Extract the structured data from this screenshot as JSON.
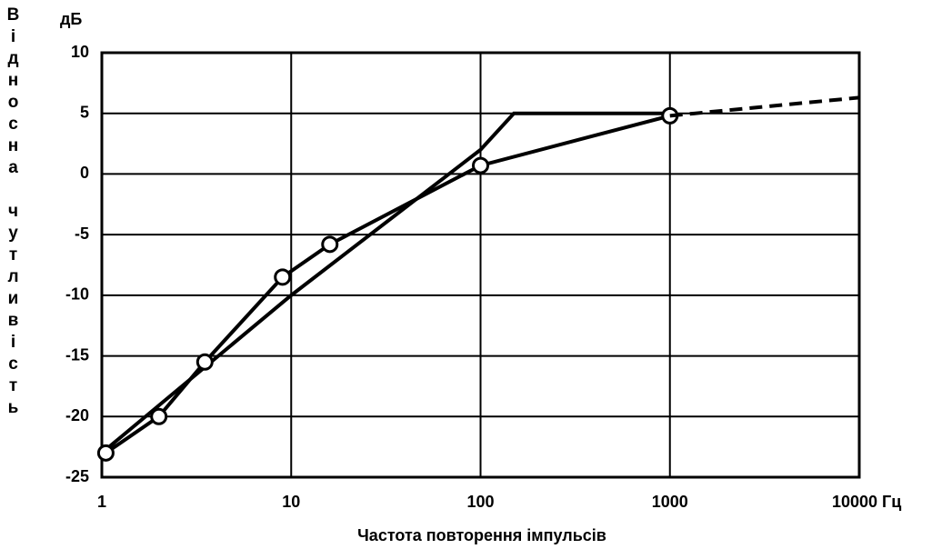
{
  "chart_data": {
    "type": "line",
    "y_label": "Відносна чутливість",
    "y_unit": "дБ",
    "x_label": "Частота повторення імпульсів",
    "xscale": "log",
    "xlim": [
      1,
      10000
    ],
    "ylim": [
      -25,
      10
    ],
    "xticks": [
      1,
      10,
      100,
      1000,
      {
        "value": 10000,
        "label": "10000 Гц"
      }
    ],
    "yticks": [
      -25,
      -20,
      -15,
      -10,
      -5,
      0,
      5,
      10
    ],
    "grid": true,
    "series": [
      {
        "color": "#000000",
        "dashed": false,
        "markers": false,
        "x": [
          1,
          10,
          100,
          150,
          1000
        ],
        "values": [
          -23,
          -10,
          2,
          5,
          5
        ]
      },
      {
        "color": "#000000",
        "dashed": false,
        "markers": true,
        "x": [
          1.05,
          2,
          3.5,
          9,
          16,
          100,
          1000
        ],
        "values": [
          -23,
          -20,
          -15.5,
          -8.5,
          -5.8,
          0.7,
          4.8
        ]
      },
      {
        "color": "#000000",
        "dashed": true,
        "markers": false,
        "x": [
          1000,
          10000
        ],
        "values": [
          4.8,
          6.3
        ]
      }
    ]
  }
}
